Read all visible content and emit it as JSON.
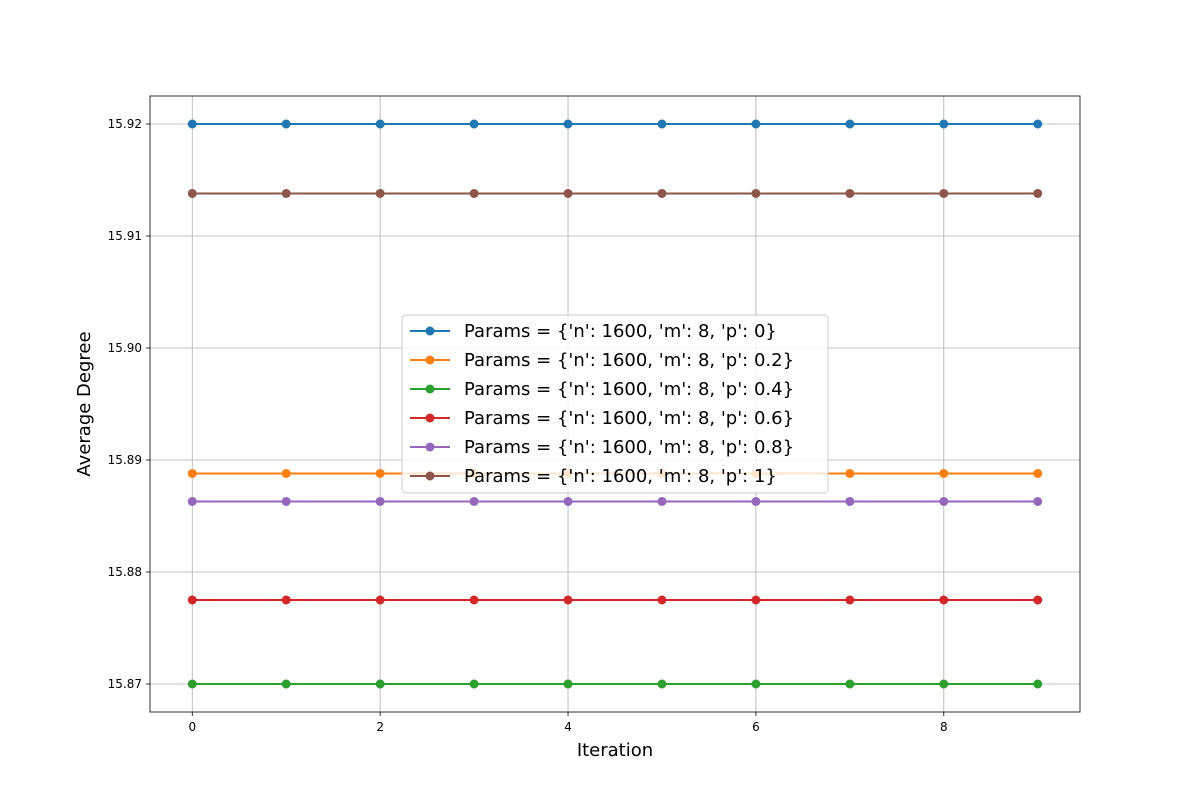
{
  "chart_data": {
    "type": "line",
    "title": "",
    "xlabel": "Iteration",
    "ylabel": "Average Degree",
    "x": [
      0,
      1,
      2,
      3,
      4,
      5,
      6,
      7,
      8,
      9
    ],
    "xlim": [
      -0.45,
      9.45
    ],
    "ylim": [
      15.8675,
      15.9225
    ],
    "xticks": [
      0,
      2,
      4,
      6,
      8
    ],
    "yticks": [
      15.87,
      15.88,
      15.89,
      15.9,
      15.91,
      15.92
    ],
    "xtick_labels": [
      "0",
      "2",
      "4",
      "6",
      "8"
    ],
    "ytick_labels": [
      "15.87",
      "15.88",
      "15.89",
      "15.90",
      "15.91",
      "15.92"
    ],
    "grid": true,
    "legend_position": "center",
    "series": [
      {
        "name": "Params = {'n': 1600, 'm': 8, 'p': 0}",
        "color": "#1f77b4",
        "values": [
          15.92,
          15.92,
          15.92,
          15.92,
          15.92,
          15.92,
          15.92,
          15.92,
          15.92,
          15.92
        ]
      },
      {
        "name": "Params = {'n': 1600, 'm': 8, 'p': 0.2}",
        "color": "#ff7f0e",
        "values": [
          15.8888,
          15.8888,
          15.8888,
          15.8888,
          15.8888,
          15.8888,
          15.8888,
          15.8888,
          15.8888,
          15.8888
        ]
      },
      {
        "name": "Params = {'n': 1600, 'm': 8, 'p': 0.4}",
        "color": "#2ca02c",
        "values": [
          15.87,
          15.87,
          15.87,
          15.87,
          15.87,
          15.87,
          15.87,
          15.87,
          15.87,
          15.87
        ]
      },
      {
        "name": "Params = {'n': 1600, 'm': 8, 'p': 0.6}",
        "color": "#d62728",
        "values": [
          15.8775,
          15.8775,
          15.8775,
          15.8775,
          15.8775,
          15.8775,
          15.8775,
          15.8775,
          15.8775,
          15.8775
        ]
      },
      {
        "name": "Params = {'n': 1600, 'm': 8, 'p': 0.8}",
        "color": "#9467bd",
        "values": [
          15.8863,
          15.8863,
          15.8863,
          15.8863,
          15.8863,
          15.8863,
          15.8863,
          15.8863,
          15.8863,
          15.8863
        ]
      },
      {
        "name": "Params = {'n': 1600, 'm': 8, 'p': 1}",
        "color": "#8c564b",
        "values": [
          15.9138,
          15.9138,
          15.9138,
          15.9138,
          15.9138,
          15.9138,
          15.9138,
          15.9138,
          15.9138,
          15.9138
        ]
      }
    ]
  }
}
